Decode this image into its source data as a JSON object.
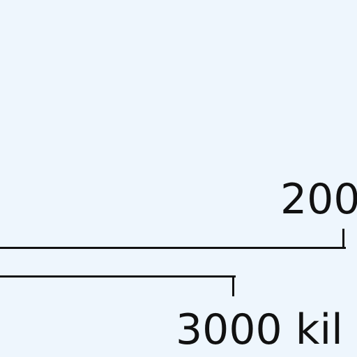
{
  "map": {
    "background_color": "#eef6fd",
    "line_color": "#111111",
    "scale_bar": {
      "upper_label": "200",
      "lower_label": "3000 kil"
    }
  }
}
